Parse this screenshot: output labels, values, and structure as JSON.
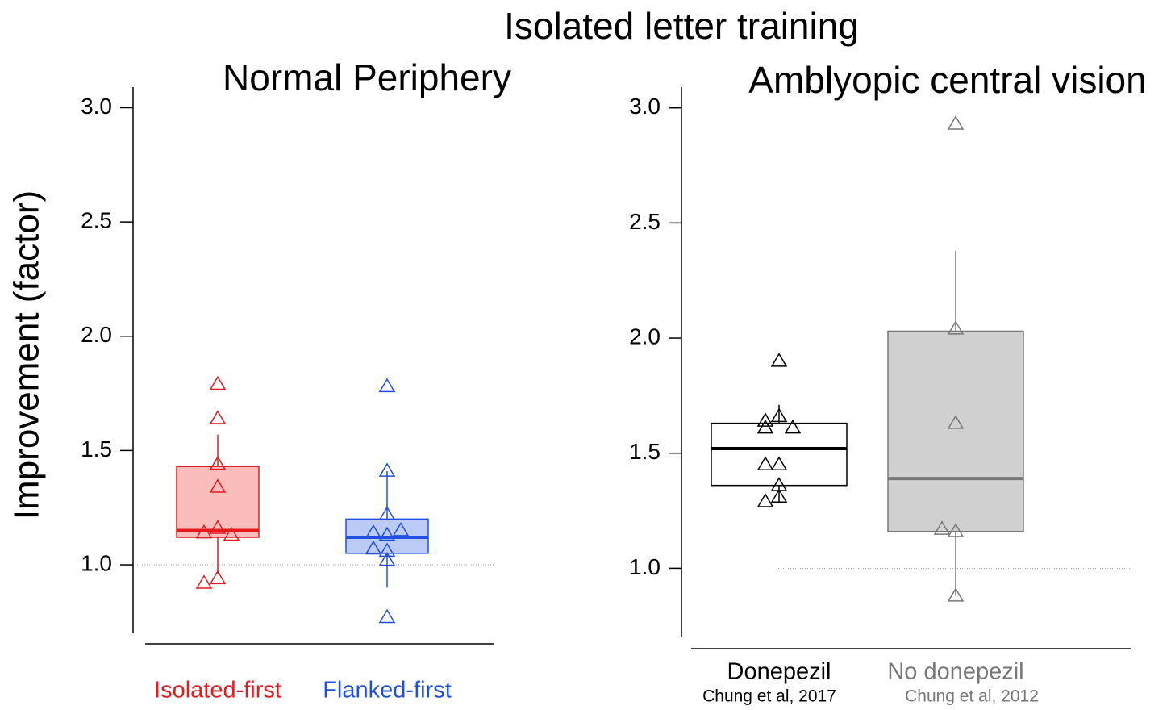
{
  "title": "Isolated letter training",
  "chart_data": [
    {
      "type": "box",
      "title": "Normal Periphery",
      "ylabel": "Improvement (factor)",
      "ylim": [
        0.7,
        3.09
      ],
      "yticks": [
        {
          "value": 1,
          "label": "1.0"
        },
        {
          "value": 1.5,
          "label": "1.5"
        },
        {
          "value": 2,
          "label": "2.0"
        },
        {
          "value": 2.5,
          "label": "2.5"
        },
        {
          "value": 3,
          "label": "3.0"
        }
      ],
      "refline": 1,
      "series": [
        {
          "name": "Isolated-first",
          "color": "#e41a1c",
          "fill": "#fbbcbc",
          "whisker_low": 0.96,
          "q1": 1.12,
          "median": 1.15,
          "q3": 1.43,
          "whisker_high": 1.57,
          "points": [
            1.79,
            1.64,
            1.44,
            1.34,
            1.16,
            1.14,
            1.13,
            0.94,
            0.92
          ]
        },
        {
          "name": "Flanked-first",
          "color": "#1f4fe0",
          "fill": "#bccbf6",
          "whisker_low": 0.9,
          "q1": 1.05,
          "median": 1.12,
          "q3": 1.2,
          "whisker_high": 1.41,
          "points": [
            1.78,
            1.41,
            1.22,
            1.13,
            1.14,
            1.15,
            1.06,
            1.07,
            1.02,
            0.77
          ]
        }
      ]
    },
    {
      "type": "box",
      "title": "Amblyopic central vision",
      "ylim": [
        0.7,
        3.09
      ],
      "yticks": [
        {
          "value": 1,
          "label": "1.0"
        },
        {
          "value": 1.5,
          "label": "1.5"
        },
        {
          "value": 2,
          "label": "2.0"
        },
        {
          "value": 2.5,
          "label": "2.5"
        },
        {
          "value": 3,
          "label": "3.0"
        }
      ],
      "refline": 1,
      "series": [
        {
          "name": "Donepezil",
          "note": "Chung et al, 2017",
          "color": "#000000",
          "fill": "#ffffff",
          "whisker_low": 1.29,
          "q1": 1.36,
          "median": 1.52,
          "q3": 1.63,
          "whisker_high": 1.71,
          "points": [
            1.9,
            1.66,
            1.64,
            1.61,
            1.61,
            1.45,
            1.45,
            1.36,
            1.31,
            1.29
          ]
        },
        {
          "name": "No donepezil",
          "note": "Chung et al, 2012",
          "color": "#777777",
          "fill": "#d0d0d0",
          "whisker_low": 0.88,
          "q1": 1.16,
          "median": 1.39,
          "q3": 2.03,
          "whisker_high": 2.38,
          "points": [
            2.93,
            2.04,
            1.63,
            1.16,
            1.17,
            0.88
          ]
        }
      ]
    }
  ]
}
